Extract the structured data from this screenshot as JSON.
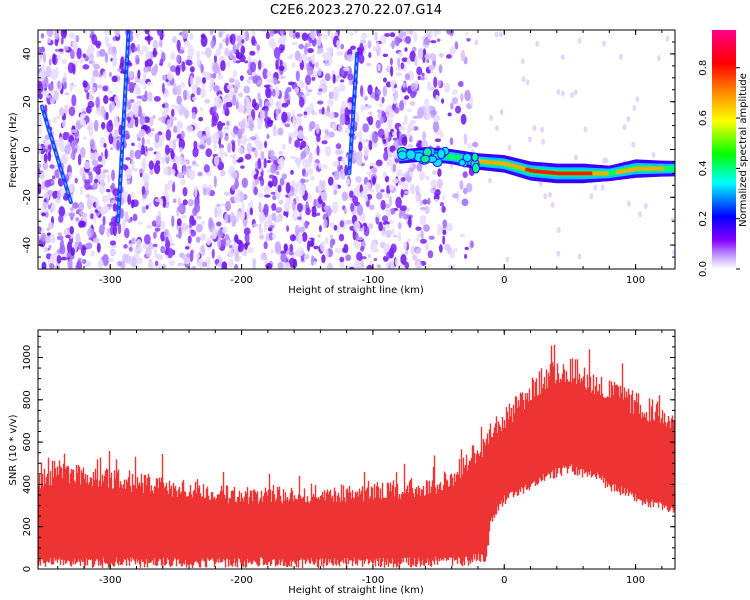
{
  "figure": {
    "title": "C2E6.2023.270.22.07.G14"
  },
  "colorbar": {
    "label": "Normalized spectral amplitude",
    "ticks": [
      0.0,
      0.2,
      0.4,
      0.6,
      0.8
    ],
    "tick_labels": [
      "0.0",
      "0.2",
      "0.4",
      "0.6",
      "0.8"
    ],
    "range": [
      0,
      0.95
    ],
    "colormap": [
      "#ffffff",
      "#8800ff",
      "#0000ff",
      "#00ffff",
      "#00ff00",
      "#ffff00",
      "#ff8800",
      "#ff0000",
      "#ff0088"
    ]
  },
  "chart_data": [
    {
      "type": "heatmap",
      "title": "",
      "xlabel": "Height of straight line (km)",
      "ylabel": "Frequency (Hz)",
      "xlim": [
        -355,
        130
      ],
      "ylim": [
        -50,
        50
      ],
      "xticks": [
        -300,
        -200,
        -100,
        0,
        100
      ],
      "xtick_labels": [
        "-300",
        "-200",
        "-100",
        "0",
        "100"
      ],
      "yticks": [
        -40,
        -20,
        0,
        20,
        40
      ],
      "ytick_labels": [
        "-40",
        "-20",
        "0",
        "20",
        "40"
      ],
      "grid": false,
      "noise_region_x": [
        -355,
        -30
      ],
      "streaks": [
        {
          "x": [
            -352,
            -330
          ],
          "y": [
            18,
            -22
          ]
        },
        {
          "x": [
            -294,
            -286
          ],
          "y": [
            -30,
            50
          ]
        },
        {
          "x": [
            -118,
            -112
          ],
          "y": [
            -10,
            40
          ]
        }
      ],
      "signal_track": {
        "x": [
          -80,
          -60,
          -40,
          -20,
          0,
          20,
          40,
          60,
          80,
          100,
          120,
          130
        ],
        "y": [
          -3,
          -2,
          -3,
          -5,
          -6,
          -9,
          -10,
          -10,
          -10,
          -8,
          -8,
          -8
        ],
        "amplitude": [
          0.35,
          0.4,
          0.45,
          0.6,
          0.7,
          0.85,
          0.9,
          0.9,
          0.5,
          0.8,
          0.55,
          0.5
        ]
      }
    },
    {
      "type": "area",
      "title": "",
      "xlabel": "Height of straight line (km)",
      "ylabel": "SNR (10 * v/v)",
      "xlim": [
        -355,
        130
      ],
      "ylim": [
        0,
        1130
      ],
      "xticks": [
        -300,
        -200,
        -100,
        0,
        100
      ],
      "xtick_labels": [
        "-300",
        "-200",
        "-100",
        "0",
        "100"
      ],
      "yticks": [
        0,
        200,
        400,
        600,
        800,
        1000
      ],
      "ytick_labels": [
        "0",
        "200",
        "400",
        "600",
        "800",
        "1000"
      ],
      "grid": false,
      "series": [
        {
          "color": "#ee3333",
          "x": [
            -355,
            -340,
            -320,
            -300,
            -280,
            -260,
            -240,
            -220,
            -200,
            -180,
            -160,
            -140,
            -120,
            -100,
            -80,
            -60,
            -40,
            -30,
            -20,
            -14,
            -10,
            0,
            10,
            20,
            30,
            40,
            50,
            60,
            70,
            80,
            90,
            100,
            110,
            120,
            130
          ],
          "lower": [
            60,
            60,
            55,
            55,
            55,
            55,
            55,
            55,
            55,
            55,
            55,
            55,
            55,
            55,
            55,
            60,
            60,
            60,
            80,
            60,
            260,
            350,
            380,
            420,
            450,
            480,
            500,
            480,
            460,
            420,
            390,
            360,
            340,
            320,
            310
          ],
          "upper": [
            470,
            520,
            500,
            480,
            460,
            440,
            420,
            400,
            390,
            390,
            390,
            400,
            400,
            410,
            420,
            430,
            480,
            560,
            620,
            640,
            700,
            760,
            830,
            900,
            960,
            1000,
            1010,
            980,
            940,
            900,
            870,
            840,
            810,
            790,
            760
          ]
        }
      ]
    }
  ]
}
